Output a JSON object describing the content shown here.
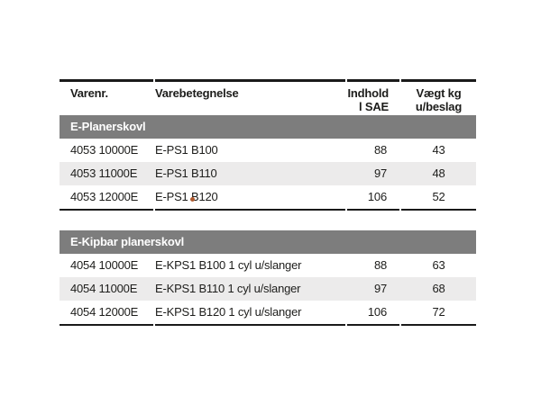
{
  "table": {
    "columns": [
      {
        "id": "varenr",
        "label": "Varenr.",
        "align": "left"
      },
      {
        "id": "varebetegnelse",
        "label": "Varebetegnelse",
        "align": "left"
      },
      {
        "id": "indhold",
        "label_line1": "Indhold",
        "label_line2": "l SAE",
        "align": "right"
      },
      {
        "id": "vaegt",
        "label_line1": "Vægt kg",
        "label_line2": "u/beslag",
        "align": "center"
      }
    ],
    "sections": [
      {
        "title": "E-Planerskovl",
        "rows": [
          {
            "varenr": "4053 10000E",
            "varebetegnelse": "E-PS1 B100",
            "indhold": "88",
            "vaegt": "43"
          },
          {
            "varenr": "4053 11000E",
            "varebetegnelse": "E-PS1 B110",
            "indhold": "97",
            "vaegt": "48"
          },
          {
            "varenr": "4053 12000E",
            "varebetegnelse": "E-PS1 B120",
            "indhold": "106",
            "vaegt": "52"
          }
        ]
      },
      {
        "title": "E-Kipbar planerskovl",
        "rows": [
          {
            "varenr": "4054 10000E",
            "varebetegnelse": "E-KPS1 B100 1 cyl u/slanger",
            "indhold": "88",
            "vaegt": "63"
          },
          {
            "varenr": "4054 11000E",
            "varebetegnelse": "E-KPS1 B110 1 cyl u/slanger",
            "indhold": "97",
            "vaegt": "68"
          },
          {
            "varenr": "4054 12000E",
            "varebetegnelse": "E-KPS1 B120 1 cyl u/slanger",
            "indhold": "106",
            "vaegt": "72"
          }
        ]
      }
    ],
    "colors": {
      "section_header_bg": "#7d7d7d",
      "section_header_text": "#ffffff",
      "row_alt_bg": "#ECEBEB",
      "border": "#1a1a1a",
      "text": "#1d1d1b",
      "marker_dot": "#b05a2f"
    }
  }
}
